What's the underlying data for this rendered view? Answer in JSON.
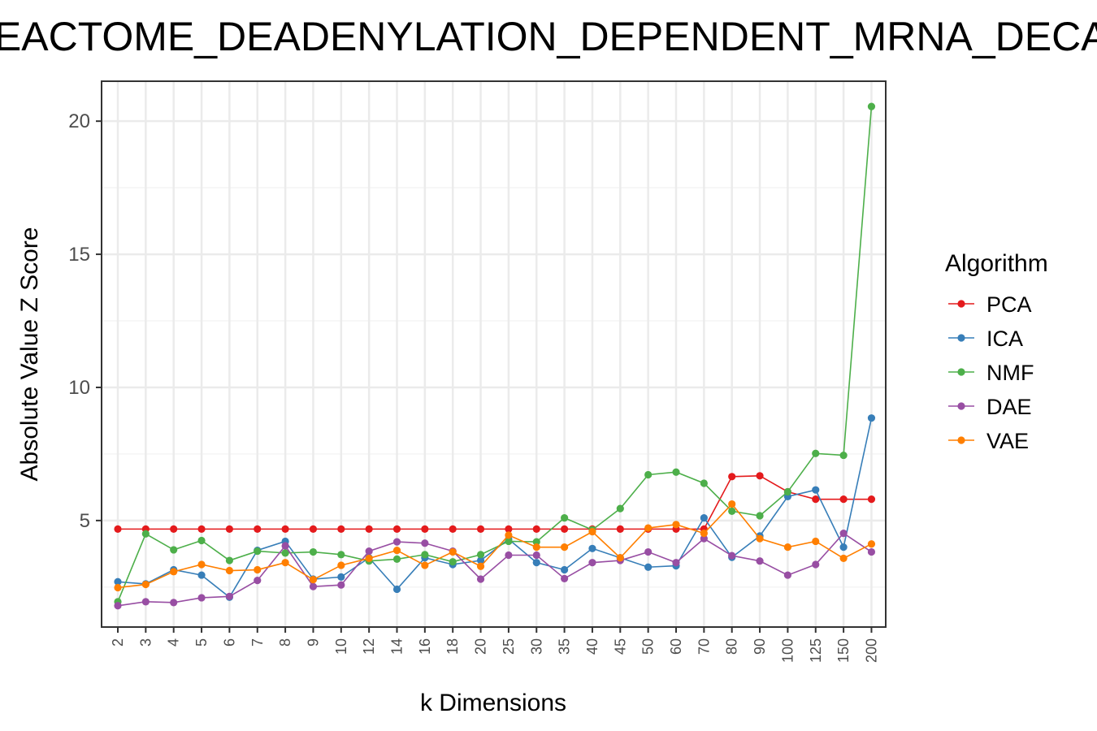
{
  "chart_data": {
    "type": "line",
    "title": "REACTOME_DEADENYLATION_DEPENDENT_MRNA_DECAY",
    "xlabel": "k Dimensions",
    "ylabel": "Absolute Value Z Score",
    "categories": [
      "2",
      "3",
      "4",
      "5",
      "6",
      "7",
      "8",
      "9",
      "10",
      "12",
      "14",
      "16",
      "18",
      "20",
      "25",
      "30",
      "35",
      "40",
      "45",
      "50",
      "60",
      "70",
      "80",
      "90",
      "100",
      "125",
      "150",
      "200"
    ],
    "ylim": [
      1.0,
      21.5
    ],
    "yticks": [
      5,
      10,
      15,
      20
    ],
    "grid": true,
    "legend": {
      "title": "Algorithm",
      "position": "right"
    },
    "series": [
      {
        "name": "PCA",
        "color": "#e41a1c",
        "values": [
          4.68,
          4.68,
          4.68,
          4.68,
          4.68,
          4.68,
          4.68,
          4.68,
          4.68,
          4.68,
          4.68,
          4.68,
          4.68,
          4.68,
          4.68,
          4.68,
          4.68,
          4.68,
          4.68,
          4.68,
          4.68,
          4.68,
          6.65,
          6.68,
          6.08,
          5.8,
          5.8,
          5.8
        ]
      },
      {
        "name": "ICA",
        "color": "#377eb8",
        "values": [
          2.7,
          2.62,
          3.15,
          2.95,
          2.12,
          3.88,
          4.22,
          2.8,
          2.88,
          3.6,
          2.42,
          3.6,
          3.35,
          3.5,
          4.3,
          3.42,
          3.15,
          3.95,
          3.6,
          3.25,
          3.3,
          5.1,
          3.62,
          4.42,
          5.9,
          6.15,
          4.0,
          8.85
        ]
      },
      {
        "name": "NMF",
        "color": "#4daf4a",
        "values": [
          1.95,
          4.5,
          3.9,
          4.25,
          3.5,
          3.85,
          3.78,
          3.82,
          3.72,
          3.48,
          3.55,
          3.72,
          3.45,
          3.72,
          4.22,
          4.2,
          5.1,
          4.65,
          5.45,
          6.72,
          6.82,
          6.4,
          5.35,
          5.18,
          6.08,
          7.52,
          7.45,
          20.55
        ]
      },
      {
        "name": "DAE",
        "color": "#984ea3",
        "values": [
          1.8,
          1.95,
          1.92,
          2.1,
          2.15,
          2.75,
          4.05,
          2.52,
          2.58,
          3.85,
          4.2,
          4.15,
          3.85,
          2.8,
          3.7,
          3.7,
          2.82,
          3.42,
          3.5,
          3.82,
          3.42,
          4.32,
          3.68,
          3.48,
          2.95,
          3.35,
          4.52,
          3.82
        ]
      },
      {
        "name": "VAE",
        "color": "#ff7f00",
        "values": [
          2.48,
          2.6,
          3.08,
          3.35,
          3.12,
          3.15,
          3.42,
          2.78,
          3.32,
          3.58,
          3.88,
          3.32,
          3.82,
          3.28,
          4.45,
          4.0,
          4.0,
          4.58,
          3.6,
          4.72,
          4.85,
          4.52,
          5.62,
          4.32,
          4.0,
          4.22,
          3.58,
          4.12
        ]
      }
    ]
  }
}
